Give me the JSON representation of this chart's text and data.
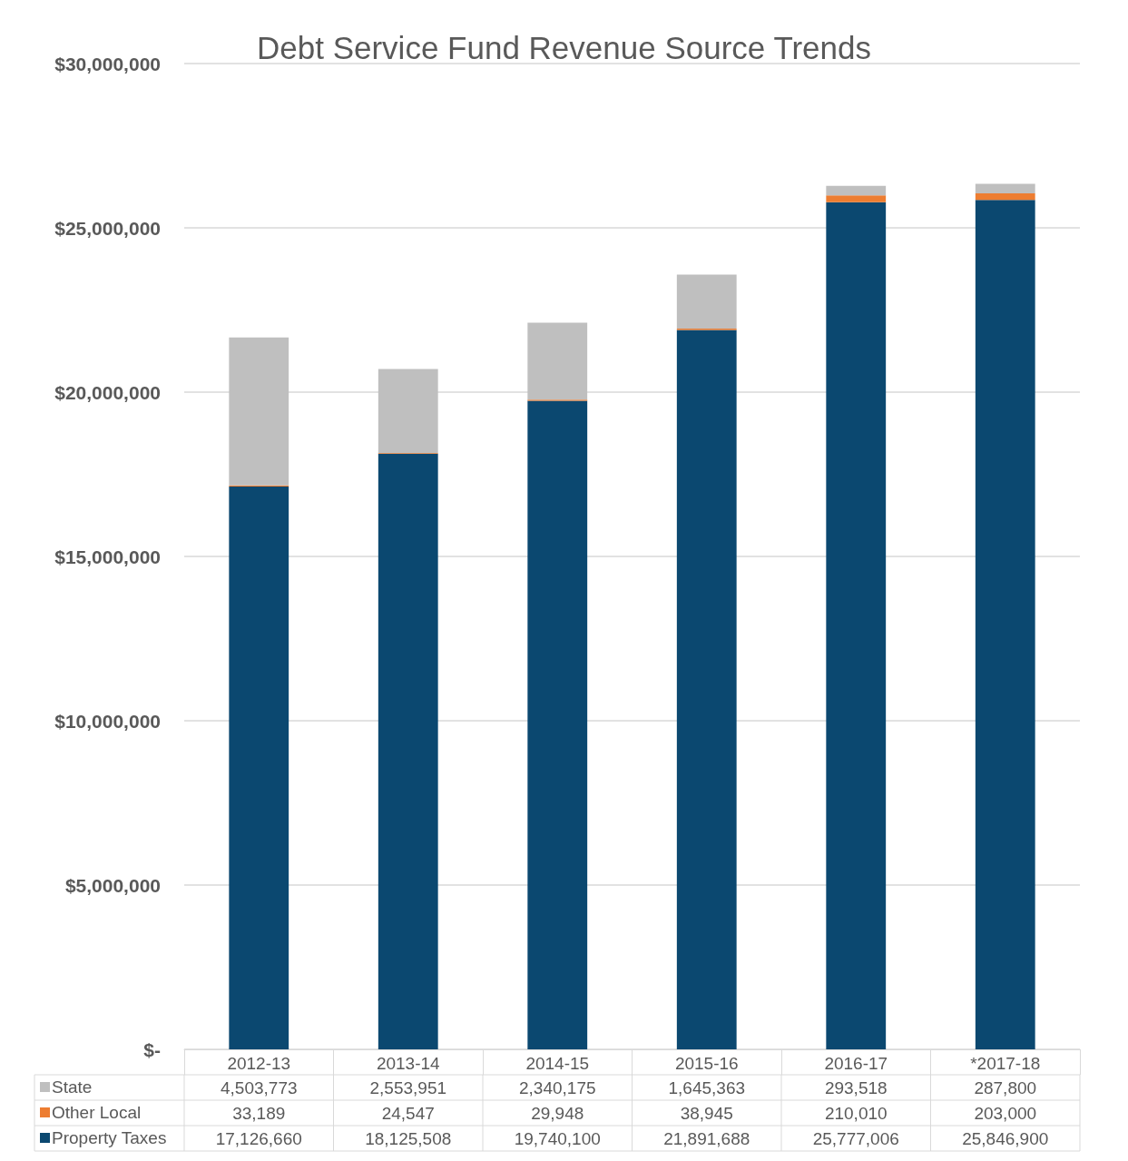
{
  "chart_data": {
    "type": "bar",
    "title": "Debt Service Fund Revenue Source Trends",
    "stacked": true,
    "categories": [
      "2012-13",
      "2013-14",
      "2014-15",
      "2015-16",
      "2016-17",
      "*2017-18"
    ],
    "series": [
      {
        "name": "Property Taxes",
        "color": "#0b4870",
        "values": [
          17126660,
          18125508,
          19740100,
          21891688,
          25777006,
          25846900
        ],
        "value_labels": [
          "17,126,660",
          "18,125,508",
          "19,740,100",
          "21,891,688",
          "25,777,006",
          "25,846,900"
        ]
      },
      {
        "name": "Other Local",
        "color": "#ed7d31",
        "values": [
          33189,
          24547,
          29948,
          38945,
          210010,
          203000
        ],
        "value_labels": [
          "33,189",
          "24,547",
          "29,948",
          "38,945",
          "210,010",
          "203,000"
        ]
      },
      {
        "name": "State",
        "color": "#bfbfbf",
        "values": [
          4503773,
          2553951,
          2340175,
          1645363,
          293518,
          287800
        ],
        "value_labels": [
          "4,503,773",
          "2,553,951",
          "2,340,175",
          "1,645,363",
          "293,518",
          "287,800"
        ]
      }
    ],
    "ylim": [
      0,
      30000000
    ],
    "yticks": [
      {
        "value": 0,
        "label": "$-"
      },
      {
        "value": 5000000,
        "label": "$5,000,000"
      },
      {
        "value": 10000000,
        "label": "$10,000,000"
      },
      {
        "value": 15000000,
        "label": "$15,000,000"
      },
      {
        "value": 20000000,
        "label": "$20,000,000"
      },
      {
        "value": 25000000,
        "label": "$25,000,000"
      },
      {
        "value": 30000000,
        "label": "$30,000,000"
      }
    ],
    "grid": "y",
    "legend": "bottom"
  }
}
